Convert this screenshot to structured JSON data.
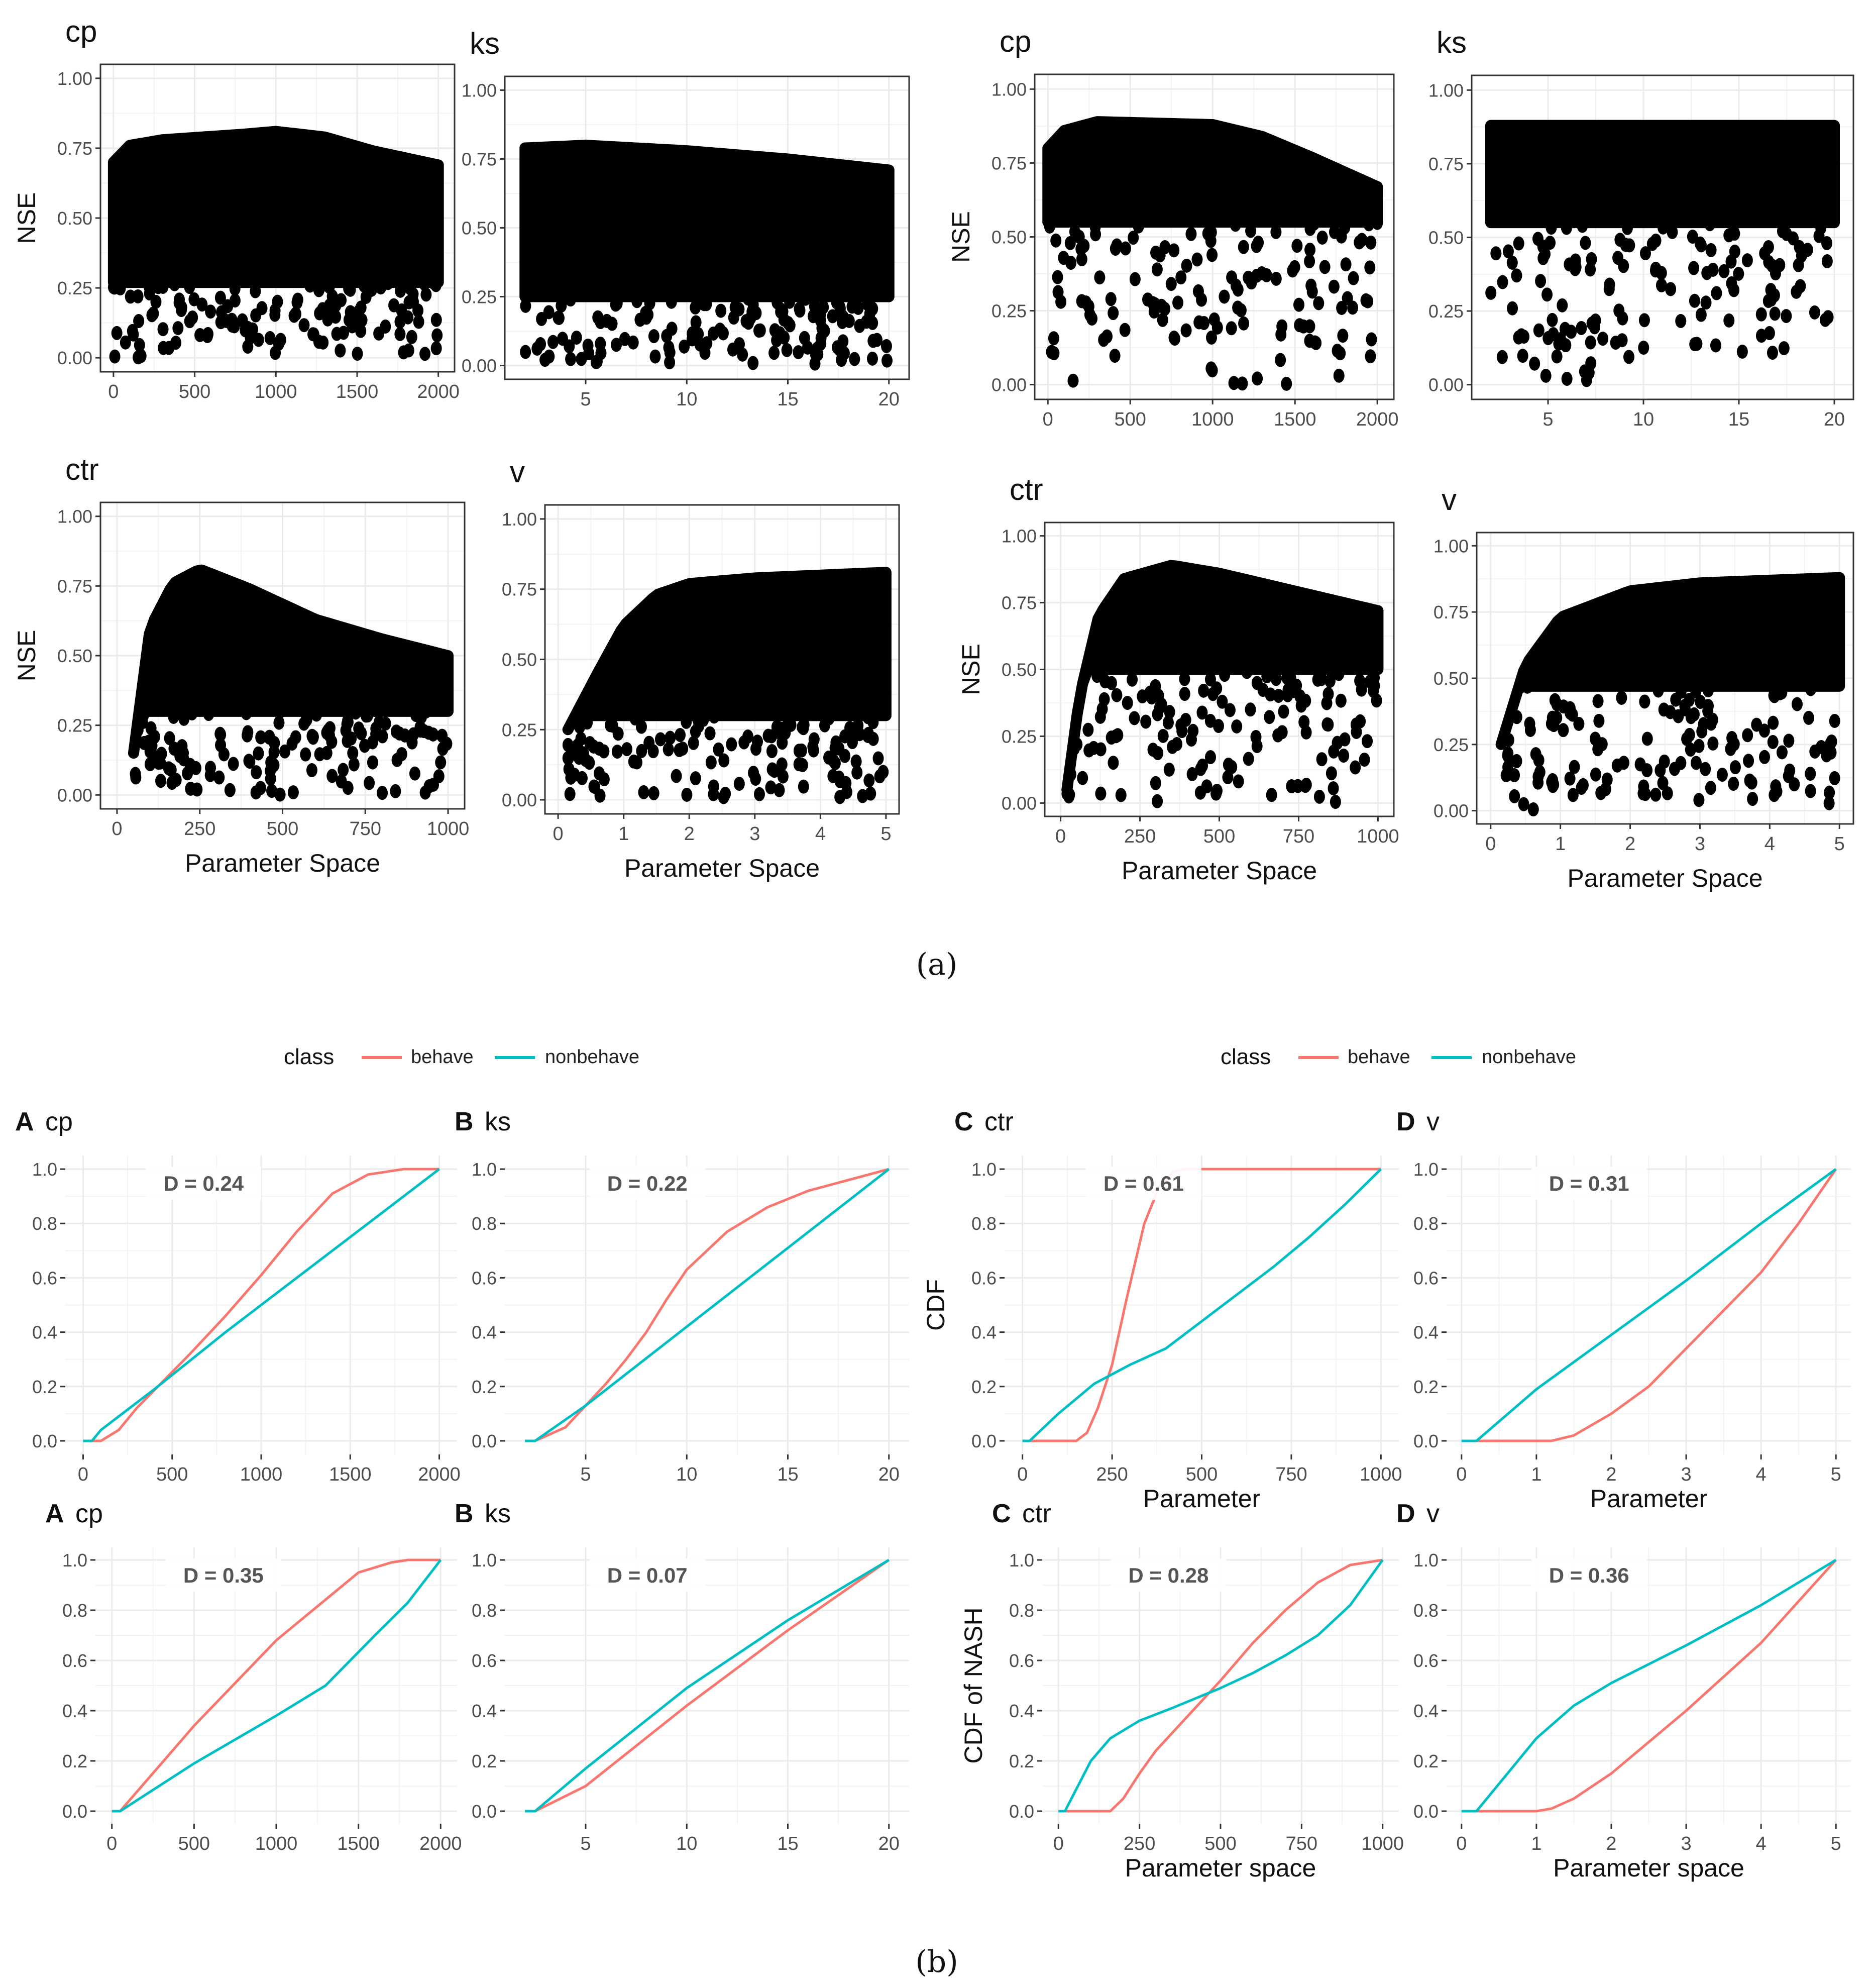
{
  "figure": {
    "caption_a": "(a)",
    "caption_b": "(b)",
    "scatter_ylabel": "NSE",
    "scatter_xlabel": "Parameter Space",
    "legend_title": "class",
    "legend_behave": "behave",
    "legend_nonbehave": "nonbehave"
  },
  "colors": {
    "behave": "#F8766D",
    "nonbehave": "#00BFC4",
    "points": "#000000",
    "grid": "#EBEBEB"
  },
  "chart_data": [
    {
      "type": "scatter",
      "group": "a-left",
      "title": "cp",
      "xlim": [
        -80,
        2100
      ],
      "ylim": [
        -0.05,
        1.05
      ],
      "xticks": [
        0,
        500,
        1000,
        1500,
        2000
      ],
      "yticks": [
        "0.00",
        "0.25",
        "0.50",
        "0.75",
        "1.00"
      ],
      "xlabel": "",
      "ylabel": "NSE",
      "upper": [
        [
          0,
          0.7
        ],
        [
          100,
          0.76
        ],
        [
          300,
          0.78
        ],
        [
          800,
          0.8
        ],
        [
          1000,
          0.81
        ],
        [
          1300,
          0.79
        ],
        [
          1600,
          0.74
        ],
        [
          2000,
          0.69
        ]
      ],
      "lower_dense": 0.27
    },
    {
      "type": "scatter",
      "group": "a-left",
      "title": "ks",
      "xlim": [
        1,
        21
      ],
      "ylim": [
        -0.05,
        1.05
      ],
      "xticks": [
        5,
        10,
        15,
        20
      ],
      "yticks": [
        "0.00",
        "0.25",
        "0.50",
        "0.75",
        "1.00"
      ],
      "xlabel": "",
      "ylabel": "",
      "upper": [
        [
          2,
          0.79
        ],
        [
          5,
          0.8
        ],
        [
          10,
          0.78
        ],
        [
          15,
          0.75
        ],
        [
          20,
          0.71
        ]
      ],
      "lower_dense": 0.25
    },
    {
      "type": "scatter",
      "group": "a-left",
      "title": "ctr",
      "xlim": [
        -50,
        1050
      ],
      "ylim": [
        -0.05,
        1.05
      ],
      "xticks": [
        0,
        250,
        500,
        750,
        1000
      ],
      "yticks": [
        "0.00",
        "0.25",
        "0.50",
        "0.75",
        "1.00"
      ],
      "xlabel": "Parameter Space",
      "ylabel": "NSE",
      "upper": [
        [
          50,
          0.15
        ],
        [
          100,
          0.6
        ],
        [
          170,
          0.76
        ],
        [
          250,
          0.81
        ],
        [
          400,
          0.74
        ],
        [
          600,
          0.63
        ],
        [
          800,
          0.56
        ],
        [
          1000,
          0.5
        ]
      ],
      "lower_dense": 0.3
    },
    {
      "type": "scatter",
      "group": "a-left",
      "title": "v",
      "xlim": [
        -0.2,
        5.2
      ],
      "ylim": [
        -0.05,
        1.05
      ],
      "xticks": [
        0,
        1,
        2,
        3,
        4,
        5
      ],
      "yticks": [
        "0.00",
        "0.25",
        "0.50",
        "0.75",
        "1.00"
      ],
      "xlabel": "Parameter Space",
      "ylabel": "",
      "upper": [
        [
          0.15,
          0.25
        ],
        [
          0.6,
          0.45
        ],
        [
          1,
          0.62
        ],
        [
          1.5,
          0.73
        ],
        [
          2,
          0.77
        ],
        [
          3,
          0.79
        ],
        [
          4,
          0.8
        ],
        [
          5,
          0.81
        ]
      ],
      "lower_dense": 0.3
    },
    {
      "type": "scatter",
      "group": "a-right",
      "title": "cp",
      "xlim": [
        -80,
        2100
      ],
      "ylim": [
        -0.05,
        1.05
      ],
      "xticks": [
        0,
        500,
        1000,
        1500,
        2000
      ],
      "yticks": [
        "0.00",
        "0.25",
        "0.50",
        "0.75",
        "1.00"
      ],
      "xlabel": "",
      "ylabel": "NSE",
      "upper": [
        [
          0,
          0.8
        ],
        [
          100,
          0.86
        ],
        [
          300,
          0.89
        ],
        [
          1000,
          0.88
        ],
        [
          1300,
          0.84
        ],
        [
          1600,
          0.77
        ],
        [
          2000,
          0.67
        ]
      ],
      "lower_dense": 0.55
    },
    {
      "type": "scatter",
      "group": "a-right",
      "title": "ks",
      "xlim": [
        1,
        21
      ],
      "ylim": [
        -0.05,
        1.05
      ],
      "xticks": [
        5,
        10,
        15,
        20
      ],
      "yticks": [
        "0.00",
        "0.25",
        "0.50",
        "0.75",
        "1.00"
      ],
      "xlabel": "",
      "ylabel": "",
      "upper": [
        [
          2,
          0.88
        ],
        [
          10,
          0.88
        ],
        [
          20,
          0.88
        ]
      ],
      "lower_dense": 0.55
    },
    {
      "type": "scatter",
      "group": "a-right",
      "title": "ctr",
      "xlim": [
        -50,
        1050
      ],
      "ylim": [
        -0.05,
        1.05
      ],
      "xticks": [
        0,
        250,
        500,
        750,
        1000
      ],
      "yticks": [
        "0.00",
        "0.25",
        "0.50",
        "0.75",
        "1.00"
      ],
      "xlabel": "Parameter Space",
      "ylabel": "NSE",
      "upper": [
        [
          20,
          0.05
        ],
        [
          60,
          0.4
        ],
        [
          120,
          0.7
        ],
        [
          200,
          0.84
        ],
        [
          350,
          0.89
        ],
        [
          500,
          0.86
        ],
        [
          750,
          0.79
        ],
        [
          1000,
          0.72
        ]
      ],
      "lower_dense": 0.5
    },
    {
      "type": "scatter",
      "group": "a-right",
      "title": "v",
      "xlim": [
        -0.2,
        5.2
      ],
      "ylim": [
        -0.05,
        1.05
      ],
      "xticks": [
        0,
        1,
        2,
        3,
        4,
        5
      ],
      "yticks": [
        "0.00",
        "0.25",
        "0.50",
        "0.75",
        "1.00"
      ],
      "xlabel": "Parameter Space",
      "ylabel": "",
      "upper": [
        [
          0.15,
          0.25
        ],
        [
          0.5,
          0.55
        ],
        [
          1,
          0.73
        ],
        [
          2,
          0.83
        ],
        [
          3,
          0.86
        ],
        [
          4,
          0.87
        ],
        [
          5,
          0.88
        ]
      ],
      "lower_dense": 0.47
    },
    {
      "type": "line",
      "group": "b-left",
      "letter": "A",
      "title": "cp",
      "d_label": "D = 0.24",
      "xlim": [
        -100,
        2100
      ],
      "ylim": [
        -0.05,
        1.05
      ],
      "xticks": [
        0,
        500,
        1000,
        1500,
        2000
      ],
      "yticks": [
        "0.0",
        "0.2",
        "0.4",
        "0.6",
        "0.8",
        "1.0"
      ],
      "xlabel": "",
      "ylabel": "",
      "series": [
        {
          "name": "behave",
          "x": [
            0,
            100,
            200,
            300,
            450,
            600,
            800,
            1000,
            1200,
            1400,
            1600,
            1800,
            2000
          ],
          "y": [
            0,
            0,
            0.04,
            0.12,
            0.22,
            0.32,
            0.46,
            0.61,
            0.77,
            0.91,
            0.98,
            1.0,
            1.0
          ]
        },
        {
          "name": "nonbehave",
          "x": [
            0,
            50,
            100,
            200,
            400,
            800,
            1200,
            1600,
            2000
          ],
          "y": [
            0,
            0,
            0.04,
            0.09,
            0.19,
            0.4,
            0.6,
            0.8,
            1.0
          ]
        }
      ]
    },
    {
      "type": "line",
      "group": "b-left",
      "letter": "B",
      "title": "ks",
      "d_label": "D = 0.22",
      "xlim": [
        1,
        21
      ],
      "ylim": [
        -0.05,
        1.05
      ],
      "xticks": [
        5,
        10,
        15,
        20
      ],
      "yticks": [
        "0.0",
        "0.2",
        "0.4",
        "0.6",
        "0.8",
        "1.0"
      ],
      "xlabel": "",
      "ylabel": "",
      "series": [
        {
          "name": "behave",
          "x": [
            2,
            2.5,
            4,
            5,
            6,
            7,
            8,
            9,
            10,
            12,
            14,
            16,
            18,
            20
          ],
          "y": [
            0,
            0,
            0.05,
            0.13,
            0.21,
            0.3,
            0.4,
            0.52,
            0.63,
            0.77,
            0.86,
            0.92,
            0.96,
            1.0
          ]
        },
        {
          "name": "nonbehave",
          "x": [
            2,
            2.5,
            5,
            10,
            15,
            20
          ],
          "y": [
            0,
            0,
            0.13,
            0.42,
            0.71,
            1.0
          ]
        }
      ]
    },
    {
      "type": "line",
      "group": "b-left",
      "letter": "C",
      "title": "ctr",
      "d_label": "D = 0.61",
      "xlim": [
        -50,
        1050
      ],
      "ylim": [
        -0.05,
        1.05
      ],
      "xticks": [
        0,
        250,
        500,
        750,
        1000
      ],
      "yticks": [
        "0.0",
        "0.2",
        "0.4",
        "0.6",
        "0.8",
        "1.0"
      ],
      "xlabel": "Parameter",
      "ylabel": "CDF",
      "series": [
        {
          "name": "behave",
          "x": [
            0,
            150,
            180,
            210,
            250,
            290,
            340,
            380,
            420,
            450,
            700,
            1000
          ],
          "y": [
            0,
            0,
            0.03,
            0.12,
            0.28,
            0.52,
            0.8,
            0.93,
            0.99,
            1.0,
            1.0,
            1.0
          ]
        },
        {
          "name": "nonbehave",
          "x": [
            0,
            20,
            100,
            200,
            300,
            400,
            500,
            600,
            700,
            800,
            900,
            1000
          ],
          "y": [
            0,
            0,
            0.1,
            0.21,
            0.28,
            0.34,
            0.44,
            0.54,
            0.64,
            0.75,
            0.87,
            1.0
          ]
        }
      ]
    },
    {
      "type": "line",
      "group": "b-left",
      "letter": "D",
      "title": "v",
      "d_label": "D = 0.31",
      "xlim": [
        -0.2,
        5.2
      ],
      "ylim": [
        -0.05,
        1.05
      ],
      "xticks": [
        0,
        1,
        2,
        3,
        4,
        5
      ],
      "yticks": [
        "0.0",
        "0.2",
        "0.4",
        "0.6",
        "0.8",
        "1.0"
      ],
      "xlabel": "Parameter",
      "ylabel": "",
      "series": [
        {
          "name": "behave",
          "x": [
            0,
            1.2,
            1.5,
            2,
            2.5,
            3,
            3.5,
            4,
            4.5,
            5
          ],
          "y": [
            0,
            0,
            0.02,
            0.1,
            0.2,
            0.34,
            0.48,
            0.62,
            0.8,
            1.0
          ]
        },
        {
          "name": "nonbehave",
          "x": [
            0,
            0.2,
            1,
            2,
            3,
            4,
            5
          ],
          "y": [
            0,
            0,
            0.19,
            0.39,
            0.59,
            0.8,
            1.0
          ]
        }
      ]
    },
    {
      "type": "line",
      "group": "b-right",
      "letter": "A",
      "title": "cp",
      "d_label": "D = 0.35",
      "xlim": [
        -100,
        2100
      ],
      "ylim": [
        -0.05,
        1.05
      ],
      "xticks": [
        0,
        500,
        1000,
        1500,
        2000
      ],
      "yticks": [
        "0.0",
        "0.2",
        "0.4",
        "0.6",
        "0.8",
        "1.0"
      ],
      "xlabel": "",
      "ylabel": "",
      "series": [
        {
          "name": "behave",
          "x": [
            0,
            50,
            500,
            1000,
            1500,
            1700,
            1800,
            1900,
            2000
          ],
          "y": [
            0,
            0,
            0.34,
            0.68,
            0.95,
            0.99,
            1.0,
            1.0,
            1.0
          ]
        },
        {
          "name": "nonbehave",
          "x": [
            0,
            50,
            500,
            1000,
            1300,
            1600,
            1800,
            2000
          ],
          "y": [
            0,
            0,
            0.19,
            0.38,
            0.5,
            0.7,
            0.83,
            1.0
          ]
        }
      ]
    },
    {
      "type": "line",
      "group": "b-right",
      "letter": "B",
      "title": "ks",
      "d_label": "D = 0.07",
      "xlim": [
        1,
        21
      ],
      "ylim": [
        -0.05,
        1.05
      ],
      "xticks": [
        5,
        10,
        15,
        20
      ],
      "yticks": [
        "0.0",
        "0.2",
        "0.4",
        "0.6",
        "0.8",
        "1.0"
      ],
      "xlabel": "",
      "ylabel": "",
      "series": [
        {
          "name": "behave",
          "x": [
            2,
            2.5,
            5,
            10,
            15,
            20
          ],
          "y": [
            0,
            0,
            0.1,
            0.42,
            0.72,
            1.0
          ]
        },
        {
          "name": "nonbehave",
          "x": [
            2,
            2.5,
            5,
            10,
            15,
            20
          ],
          "y": [
            0,
            0,
            0.17,
            0.49,
            0.76,
            1.0
          ]
        }
      ]
    },
    {
      "type": "line",
      "group": "b-right",
      "letter": "C",
      "title": "ctr",
      "d_label": "D = 0.28",
      "xlim": [
        -50,
        1050
      ],
      "ylim": [
        -0.05,
        1.05
      ],
      "xticks": [
        0,
        250,
        500,
        750,
        1000
      ],
      "yticks": [
        "0.0",
        "0.2",
        "0.4",
        "0.6",
        "0.8",
        "1.0"
      ],
      "xlabel": "Parameter space",
      "ylabel": "CDF of NASH",
      "series": [
        {
          "name": "behave",
          "x": [
            0,
            160,
            200,
            250,
            300,
            400,
            500,
            600,
            700,
            800,
            900,
            1000
          ],
          "y": [
            0,
            0,
            0.05,
            0.15,
            0.24,
            0.38,
            0.52,
            0.67,
            0.8,
            0.91,
            0.98,
            1.0
          ]
        },
        {
          "name": "nonbehave",
          "x": [
            0,
            20,
            100,
            160,
            250,
            350,
            500,
            600,
            700,
            800,
            900,
            1000
          ],
          "y": [
            0,
            0,
            0.2,
            0.29,
            0.36,
            0.41,
            0.49,
            0.55,
            0.62,
            0.7,
            0.82,
            1.0
          ]
        }
      ]
    },
    {
      "type": "line",
      "group": "b-right",
      "letter": "D",
      "title": "v",
      "d_label": "D = 0.36",
      "xlim": [
        -0.2,
        5.2
      ],
      "ylim": [
        -0.05,
        1.05
      ],
      "xticks": [
        0,
        1,
        2,
        3,
        4,
        5
      ],
      "yticks": [
        "0.0",
        "0.2",
        "0.4",
        "0.6",
        "0.8",
        "1.0"
      ],
      "xlabel": "Parameter space",
      "ylabel": "",
      "series": [
        {
          "name": "behave",
          "x": [
            0,
            1,
            1.2,
            1.5,
            2,
            3,
            4,
            5
          ],
          "y": [
            0,
            0,
            0.01,
            0.05,
            0.15,
            0.4,
            0.67,
            1.0
          ]
        },
        {
          "name": "nonbehave",
          "x": [
            0,
            0.2,
            1,
            1.5,
            2,
            3,
            4,
            5
          ],
          "y": [
            0,
            0,
            0.29,
            0.42,
            0.51,
            0.66,
            0.82,
            1.0
          ]
        }
      ]
    }
  ]
}
